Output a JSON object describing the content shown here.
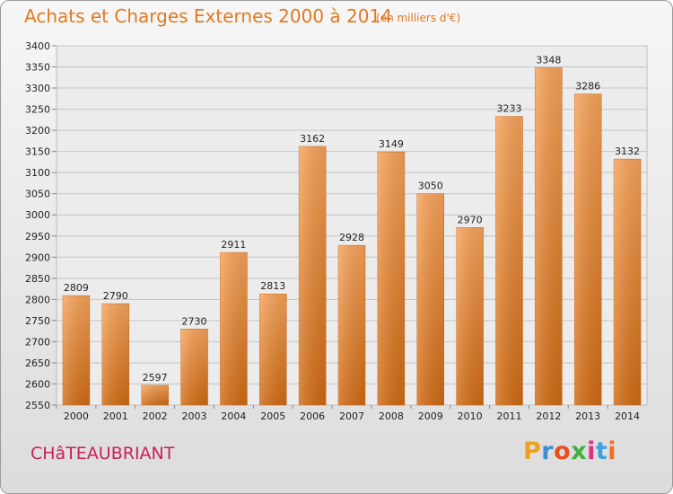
{
  "header": {
    "title": "Achats et Charges Externes 2000 à 2014",
    "subtitle": "(en milliers d'€)"
  },
  "footer": {
    "city": "CHâTEAUBRIANT",
    "logo": {
      "letters": [
        "P",
        "r",
        "o",
        "x",
        "i",
        "t",
        "i"
      ],
      "colors": [
        "#f0a020",
        "#3a8fd0",
        "#e85020",
        "#40b040",
        "#e03080",
        "#40a0e0",
        "#f07020"
      ]
    }
  },
  "chart_data": {
    "type": "bar",
    "categories": [
      "2000",
      "2001",
      "2002",
      "2003",
      "2004",
      "2005",
      "2006",
      "2007",
      "2008",
      "2009",
      "2010",
      "2011",
      "2012",
      "2013",
      "2014"
    ],
    "values": [
      2809,
      2790,
      2597,
      2730,
      2911,
      2813,
      3162,
      2928,
      3149,
      3050,
      2970,
      3233,
      3348,
      3286,
      3132
    ],
    "title": "Achats et Charges Externes 2000 à 2014",
    "xlabel": "",
    "ylabel": "",
    "ylim": [
      2550,
      3400
    ],
    "yticks": [
      2550,
      2600,
      2650,
      2700,
      2750,
      2800,
      2850,
      2900,
      2950,
      3000,
      3050,
      3100,
      3150,
      3200,
      3250,
      3300,
      3350,
      3400
    ],
    "grid": true,
    "bar_color": "#e8822a"
  }
}
